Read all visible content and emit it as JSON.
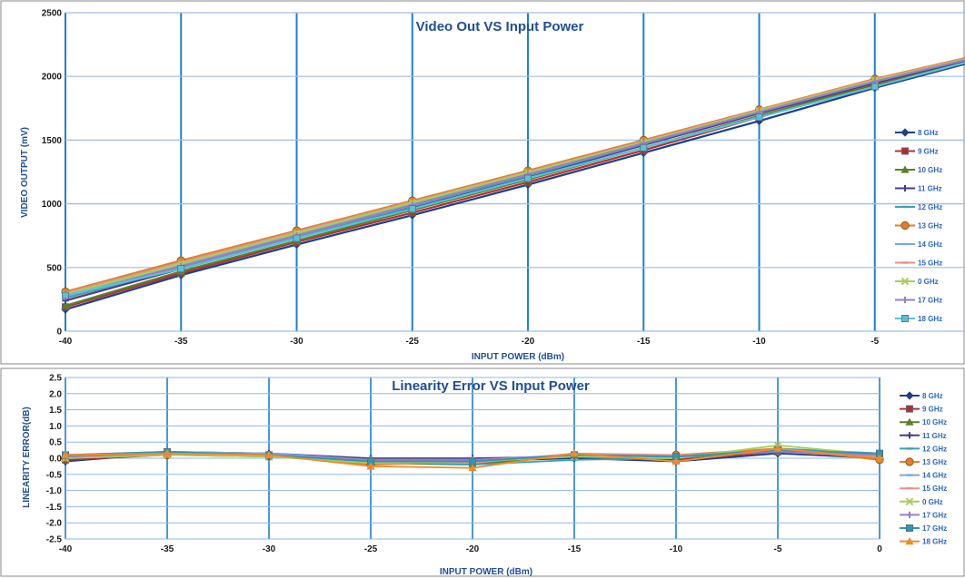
{
  "chart_data": [
    {
      "type": "line",
      "title": "Video Out VS Input Power",
      "xlabel": "INPUT POWER (dBm)",
      "ylabel": "VIDEO OUTPUT (mV)",
      "x": [
        -40,
        -35,
        -30,
        -25,
        -20,
        -15,
        -10,
        -5,
        0
      ],
      "xlim": [
        -40,
        0
      ],
      "ylim": [
        0,
        2500
      ],
      "xticks": [
        "-40",
        "-35",
        "-30",
        "-25",
        "-20",
        "-15",
        "-10",
        "-5"
      ],
      "yticks": [
        "0",
        "500",
        "1000",
        "1500",
        "2000",
        "2500"
      ],
      "grid": true,
      "legend_position": "right",
      "series": [
        {
          "name": "8 GHz",
          "color": "#1f3f8a",
          "marker": "diamond",
          "values": [
            170,
            440,
            680,
            910,
            1150,
            1400,
            1650,
            1910,
            2150
          ]
        },
        {
          "name": "9 GHz",
          "color": "#b2302c",
          "marker": "square",
          "values": [
            190,
            455,
            700,
            930,
            1170,
            1420,
            1680,
            1930,
            2160
          ]
        },
        {
          "name": "10 GHz",
          "color": "#5c7f2a",
          "marker": "triangle",
          "values": [
            200,
            470,
            710,
            950,
            1190,
            1440,
            1690,
            1940,
            2165
          ]
        },
        {
          "name": "11 GHz",
          "color": "#4b3a88",
          "marker": "cross",
          "values": [
            240,
            490,
            730,
            970,
            1210,
            1460,
            1710,
            1950,
            2170
          ]
        },
        {
          "name": "12 GHz",
          "color": "#3aa1b8",
          "marker": "dash",
          "values": [
            260,
            500,
            740,
            980,
            1220,
            1470,
            1720,
            1960,
            2175
          ]
        },
        {
          "name": "13 GHz",
          "color": "#e07e2a",
          "marker": "circle",
          "values": [
            310,
            555,
            790,
            1025,
            1260,
            1500,
            1740,
            1980,
            2190
          ]
        },
        {
          "name": "14 GHz",
          "color": "#7ea6dc",
          "marker": "dash",
          "values": [
            280,
            520,
            760,
            1000,
            1240,
            1480,
            1725,
            1965,
            2180
          ]
        },
        {
          "name": "15 GHz",
          "color": "#e8908a",
          "marker": "dash",
          "values": [
            300,
            540,
            780,
            1015,
            1250,
            1490,
            1735,
            1975,
            2185
          ]
        },
        {
          "name": "0 GHz",
          "color": "#a9cc5a",
          "marker": "x",
          "values": [
            290,
            530,
            770,
            1010,
            1245,
            1485,
            1730,
            1970,
            2180
          ]
        },
        {
          "name": "17 GHz",
          "color": "#9a7fc2",
          "marker": "cross",
          "values": [
            270,
            510,
            750,
            990,
            1230,
            1475,
            1720,
            1960,
            2175
          ]
        },
        {
          "name": "18 GHz",
          "color": "#5cc0d8",
          "marker": "square",
          "values": [
            280,
            490,
            730,
            960,
            1200,
            1440,
            1680,
            1920,
            2160
          ]
        }
      ]
    },
    {
      "type": "line",
      "title": "Linearity Error VS Input Power",
      "xlabel": "INPUT POWER (dBm)",
      "ylabel": "LINEARITY ERROR(dB)",
      "x": [
        -40,
        -35,
        -30,
        -25,
        -20,
        -15,
        -10,
        -5,
        0
      ],
      "xlim": [
        -40,
        0
      ],
      "ylim": [
        -2.5,
        2.5
      ],
      "xticks": [
        "-40",
        "-35",
        "-30",
        "-25",
        "-20",
        "-15",
        "-10",
        "-5",
        "0"
      ],
      "yticks": [
        "-2.5",
        "-2.0",
        "-1.5",
        "-1.0",
        "-0.5",
        "0.0",
        "0.5",
        "1.0",
        "1.5",
        "2.0",
        "2.5"
      ],
      "grid": true,
      "legend_position": "right",
      "series": [
        {
          "name": "8 GHz",
          "color": "#1f3f8a",
          "marker": "diamond",
          "values": [
            -0.1,
            0.15,
            0.1,
            -0.05,
            -0.1,
            0.0,
            -0.1,
            0.15,
            0.0
          ]
        },
        {
          "name": "9 GHz",
          "color": "#b2302c",
          "marker": "square",
          "values": [
            -0.05,
            0.1,
            0.05,
            -0.1,
            -0.15,
            0.05,
            -0.05,
            0.2,
            0.05
          ]
        },
        {
          "name": "10 GHz",
          "color": "#5c7f2a",
          "marker": "triangle",
          "values": [
            0.0,
            0.1,
            0.1,
            -0.15,
            -0.2,
            0.1,
            0.0,
            0.25,
            0.1
          ]
        },
        {
          "name": "11 GHz",
          "color": "#4b3a88",
          "marker": "cross",
          "values": [
            0.05,
            0.2,
            0.15,
            0.0,
            0.0,
            0.05,
            0.05,
            0.2,
            0.1
          ]
        },
        {
          "name": "12 GHz",
          "color": "#3aa1b8",
          "marker": "dash",
          "values": [
            0.1,
            0.15,
            0.1,
            -0.1,
            -0.2,
            -0.05,
            0.0,
            0.3,
            0.15
          ]
        },
        {
          "name": "13 GHz",
          "color": "#e07e2a",
          "marker": "circle",
          "values": [
            0.0,
            0.1,
            0.1,
            -0.2,
            -0.1,
            0.1,
            0.1,
            0.3,
            -0.05
          ]
        },
        {
          "name": "14 GHz",
          "color": "#7ea6dc",
          "marker": "dash",
          "values": [
            0.1,
            0.2,
            0.15,
            -0.05,
            -0.05,
            0.1,
            0.05,
            0.25,
            0.1
          ]
        },
        {
          "name": "15 GHz",
          "color": "#e8908a",
          "marker": "dash",
          "values": [
            0.05,
            0.15,
            0.1,
            -0.1,
            -0.15,
            0.15,
            0.1,
            0.2,
            0.05
          ]
        },
        {
          "name": "0 GHz",
          "color": "#a9cc5a",
          "marker": "x",
          "values": [
            0.0,
            0.1,
            0.05,
            -0.15,
            -0.1,
            0.05,
            0.0,
            0.4,
            0.1
          ]
        },
        {
          "name": "17 GHz",
          "color": "#9a7fc2",
          "marker": "cross",
          "values": [
            0.05,
            0.15,
            0.1,
            -0.05,
            -0.05,
            0.1,
            0.05,
            0.2,
            0.1
          ]
        },
        {
          "name": "17 GHz",
          "color": "#2e98b0",
          "marker": "square",
          "values": [
            0.1,
            0.2,
            0.1,
            -0.1,
            -0.1,
            0.1,
            0.05,
            0.25,
            0.15
          ]
        },
        {
          "name": "18 GHz",
          "color": "#f08a2a",
          "marker": "triangle",
          "values": [
            0.1,
            0.15,
            0.1,
            -0.25,
            -0.3,
            0.15,
            -0.1,
            0.3,
            0.0
          ]
        }
      ]
    }
  ]
}
